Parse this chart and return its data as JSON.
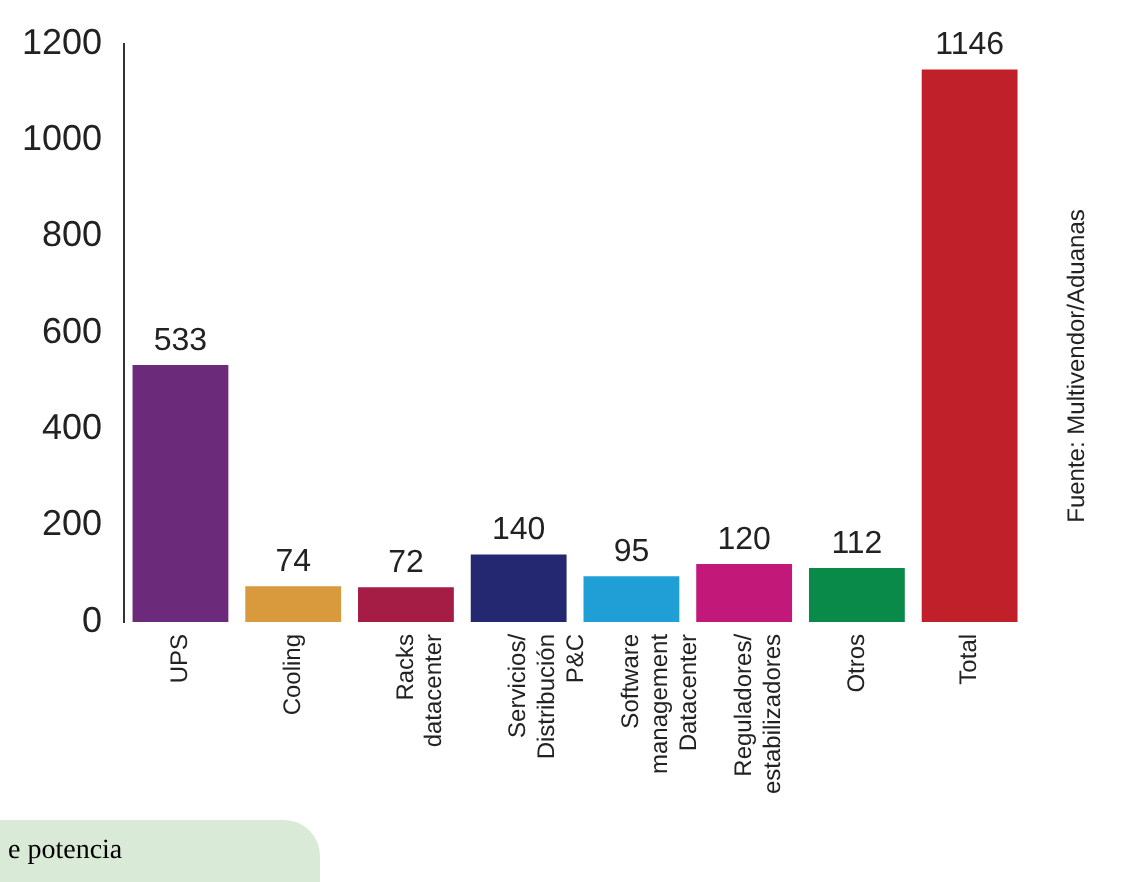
{
  "chart_data": {
    "type": "bar",
    "categories": [
      "UPS",
      "Cooling",
      "Racks\ndatacenter",
      "Servicios/\nDistribución\nP&C",
      "Software\nmanagement\nDatacenter",
      "Reguladores/\nestabilizadores",
      "Otros",
      "Total"
    ],
    "values": [
      533,
      74,
      72,
      140,
      95,
      120,
      112,
      1146
    ],
    "colors": [
      "#6b2a7a",
      "#d99a3e",
      "#a51c45",
      "#232870",
      "#1f9fd5",
      "#c2187a",
      "#0a8a48",
      "#c0202a"
    ],
    "ylim": [
      0,
      1200
    ],
    "yticks": [
      0,
      200,
      400,
      600,
      800,
      1000,
      1200
    ],
    "grid": false,
    "legend": false,
    "data_labels": true,
    "annotations": [
      "Fuente: Multivendor/Aduanas",
      "e potencia"
    ]
  }
}
